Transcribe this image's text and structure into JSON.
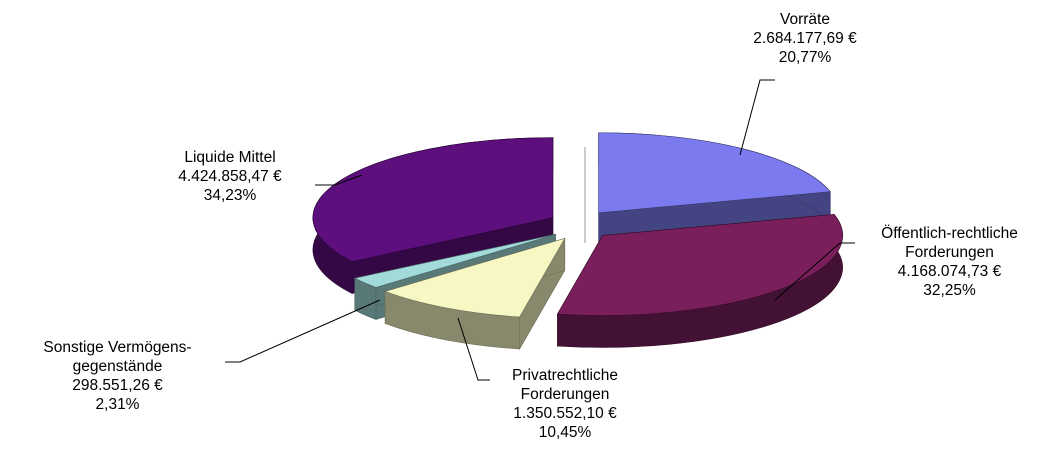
{
  "chart_data": {
    "type": "pie",
    "categories": [
      "Vorräte",
      "Öffentlich-rechtliche Forderungen",
      "Privatrechtliche Forderungen",
      "Sonstige Vermögens-gegenstände",
      "Liquide Mittel"
    ],
    "values": [
      2684177.69,
      4168074.73,
      1350552.1,
      298551.26,
      4424858.47
    ],
    "value_labels": [
      "2.684.177,69 €",
      "4.168.074,73 €",
      "1.350.552,10 €",
      "298.551,26 €",
      "4.424.858,47 €"
    ],
    "percentages": [
      20.77,
      32.25,
      10.45,
      2.31,
      34.23
    ],
    "percentage_labels": [
      "20,77%",
      "32,25%",
      "10,45%",
      "2,31%",
      "34,23%"
    ],
    "colors": [
      "#7b7bef",
      "#7a1f5c",
      "#f7f7c4",
      "#a2dada",
      "#5e0f7e"
    ]
  }
}
